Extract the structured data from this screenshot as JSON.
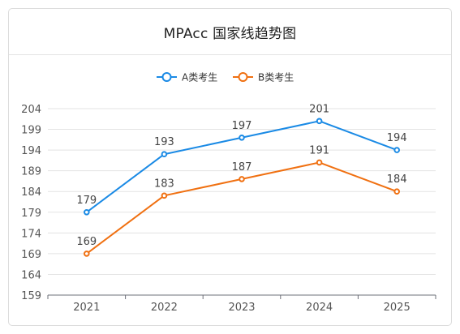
{
  "chart_data": {
    "type": "line",
    "title": "MPAcc 国家线趋势图",
    "categories": [
      "2021",
      "2022",
      "2023",
      "2024",
      "2025"
    ],
    "series": [
      {
        "name": "A类考生",
        "values": [
          179,
          193,
          197,
          201,
          194
        ],
        "color": "#1a8ae5"
      },
      {
        "name": "B类考生",
        "values": [
          169,
          183,
          187,
          191,
          184
        ],
        "color": "#f07011"
      }
    ],
    "yticks": [
      159,
      164,
      169,
      174,
      179,
      184,
      189,
      194,
      199,
      204
    ],
    "ylim": [
      159,
      204
    ],
    "xlabel": "",
    "ylabel": "",
    "grid": true,
    "legend": "top-center"
  }
}
